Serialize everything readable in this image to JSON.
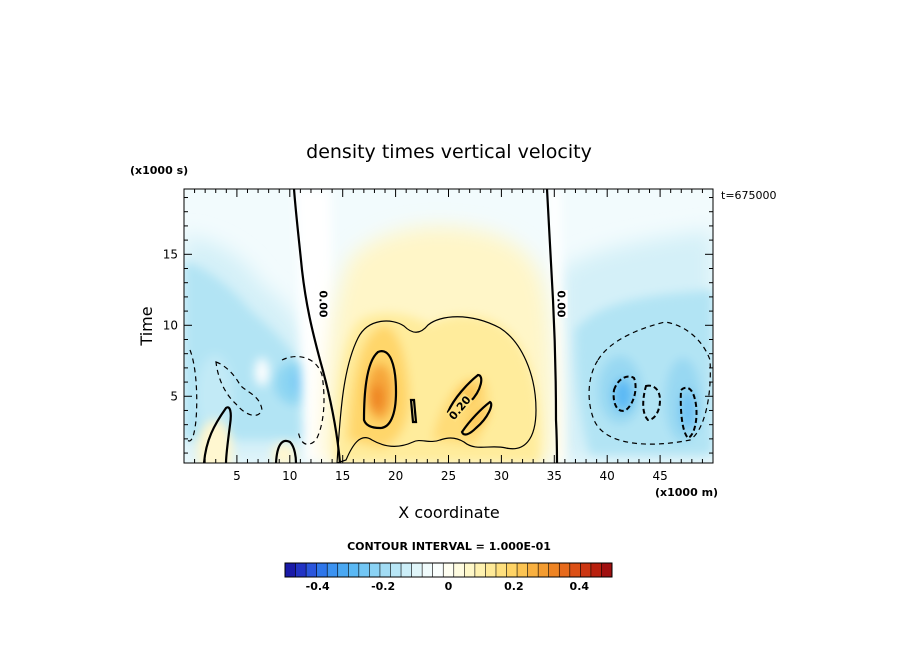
{
  "chart_data": {
    "type": "heatmap",
    "title": "density times vertical velocity",
    "xlabel": "X coordinate",
    "ylabel": "Time",
    "x_unit_label": "(x1000 m)",
    "y_unit_label": "(x1000 s)",
    "time_label": "t=675000",
    "xlim": [
      0,
      50
    ],
    "ylim": [
      0.3,
      19.6
    ],
    "x_ticks": [
      5,
      10,
      15,
      20,
      25,
      30,
      35,
      40,
      45
    ],
    "y_ticks": [
      5,
      10,
      15
    ],
    "contour_interval_label": "CONTOUR INTERVAL = 1.000E-01",
    "contour_labels": [
      {
        "text": "0.00",
        "x": 13.0,
        "y": 11.5
      },
      {
        "text": "0.00",
        "x": 35.5,
        "y": 11.5
      },
      {
        "text": "0.20",
        "x": 26.2,
        "y": 4.1
      }
    ],
    "colorbar": {
      "range": [
        -0.5,
        0.5
      ],
      "tick_values": [
        -0.4,
        -0.2,
        0,
        0.2,
        0.4
      ],
      "tick_labels": [
        "-0.4",
        "-0.2",
        "0",
        "0.2",
        "0.4"
      ],
      "colors": [
        "#1a1aa8",
        "#2233c4",
        "#2a55dc",
        "#2e76ea",
        "#3c92f0",
        "#4aa8f2",
        "#5ab8f4",
        "#72c6f4",
        "#8ad2f4",
        "#a2dcf4",
        "#b8e6f6",
        "#cceef8",
        "#e0f6fa",
        "#f0fbfc",
        "#fafffe",
        "#fffff2",
        "#fffce0",
        "#fff8c8",
        "#fff2b0",
        "#ffea98",
        "#ffe07e",
        "#ffd466",
        "#fcc452",
        "#f8b040",
        "#f49c30",
        "#ee8424",
        "#e66a1c",
        "#dc5016",
        "#cc3612",
        "#b8200e",
        "#a01010"
      ]
    },
    "features": [
      {
        "name": "positive core",
        "x": 19.0,
        "y": 5.5,
        "value": 0.35
      },
      {
        "name": "positive core",
        "x": 26.0,
        "y": 4.5,
        "value": 0.24
      },
      {
        "name": "negative core",
        "x": 41.5,
        "y": 5.0,
        "value": -0.25
      },
      {
        "name": "negative core",
        "x": 47.5,
        "y": 4.0,
        "value": -0.22
      },
      {
        "name": "negative core",
        "x": 10.5,
        "y": 6.0,
        "value": -0.12
      }
    ]
  }
}
